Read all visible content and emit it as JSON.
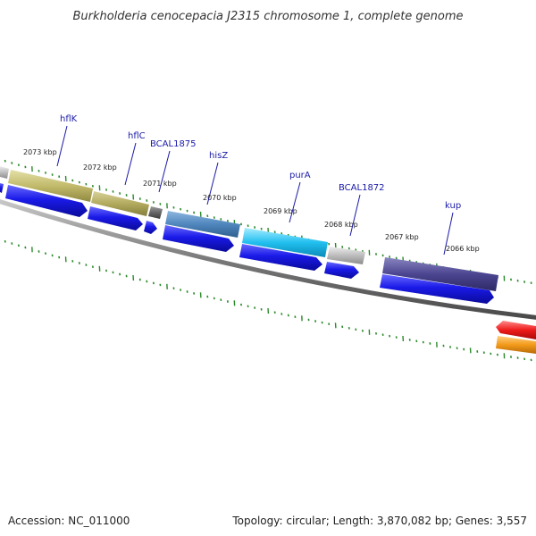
{
  "title": "Burkholderia cenocepacia J2315 chromosome 1, complete genome",
  "accession": "Accession: NC_011000",
  "summary": "Topology: circular; Length: 3,870,082 bp; Genes: 3,557",
  "colors": {
    "backbone": "#7a7a7a",
    "tick": "#2a8a2a",
    "label": "#1a1aa8",
    "cds": "#1414e8"
  },
  "ticks": [
    "2073 kbp",
    "2072 kbp",
    "2071 kbp",
    "2070 kbp",
    "2069 kbp",
    "2068 kbp",
    "2067 kbp",
    "2066 kbp"
  ],
  "gene_labels": [
    "hflK",
    "hflC",
    "BCAL1875",
    "hisZ",
    "purA",
    "BCAL1872",
    "kup"
  ]
}
